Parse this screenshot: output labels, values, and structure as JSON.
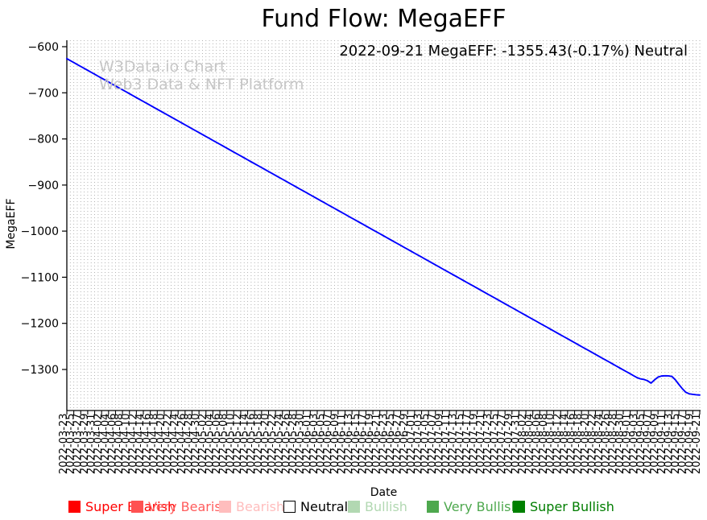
{
  "title": "Fund Flow: MegaEFF",
  "annotation": "2022-09-21 MegaEFF: -1355.43(-0.17%) Neutral",
  "watermark": {
    "line1": "W3Data.io Chart",
    "line2": "Web3 Data & NFT Platform"
  },
  "axes": {
    "y_label": "MegaEFF",
    "x_label": "Date",
    "y_ticks": [
      -600,
      -700,
      -800,
      -900,
      -1000,
      -1100,
      -1200,
      -1300
    ],
    "x_tick_step": 2,
    "grid": "vertical-dotted"
  },
  "legend": [
    {
      "label": "Super Bearish",
      "color": "#ff0000",
      "text_color": "#ff0000",
      "x": 85,
      "border": "none"
    },
    {
      "label": "Very Bearish",
      "color": "#ff5252",
      "text_color": "#ff5c5c",
      "x": 163,
      "border": "none"
    },
    {
      "label": "Bearish",
      "color": "#ffbdbd",
      "text_color": "#ffbdbd",
      "x": 272,
      "border": "none"
    },
    {
      "label": "Neutral",
      "color": "#ffffff",
      "text_color": "#000000",
      "x": 352,
      "border": "#000000"
    },
    {
      "label": "Bullish",
      "color": "#b2d8b2",
      "text_color": "#b2d8b2",
      "x": 432,
      "border": "none"
    },
    {
      "label": "Very Bullish",
      "color": "#4ea84e",
      "text_color": "#4ea84e",
      "x": 530,
      "border": "none"
    },
    {
      "label": "Super Bullish",
      "color": "#008000",
      "text_color": "#007d00",
      "x": 637,
      "border": "none"
    }
  ],
  "chart_data": {
    "type": "line",
    "title": "Fund Flow: MegaEFF",
    "xlabel": "Date",
    "ylabel": "MegaEFF",
    "line_color": "#0000ff",
    "grid_color": "#aaaaaa",
    "ylim": [
      -1389,
      -586
    ],
    "legend_position": "bottom",
    "last_point": {
      "date": "2022-09-21",
      "value": -1355.43,
      "change_pct": -0.17,
      "status": "Neutral"
    },
    "x": [
      "2022-03-23",
      "2022-03-24",
      "2022-03-25",
      "2022-03-26",
      "2022-03-27",
      "2022-03-28",
      "2022-03-29",
      "2022-03-30",
      "2022-03-31",
      "2022-04-01",
      "2022-04-02",
      "2022-04-03",
      "2022-04-04",
      "2022-04-05",
      "2022-04-06",
      "2022-04-07",
      "2022-04-08",
      "2022-04-09",
      "2022-04-10",
      "2022-04-11",
      "2022-04-12",
      "2022-04-13",
      "2022-04-14",
      "2022-04-15",
      "2022-04-16",
      "2022-04-17",
      "2022-04-18",
      "2022-04-19",
      "2022-04-20",
      "2022-04-21",
      "2022-04-22",
      "2022-04-23",
      "2022-04-24",
      "2022-04-25",
      "2022-04-26",
      "2022-04-27",
      "2022-04-28",
      "2022-04-29",
      "2022-04-30",
      "2022-05-01",
      "2022-05-02",
      "2022-05-03",
      "2022-05-04",
      "2022-05-05",
      "2022-05-06",
      "2022-05-07",
      "2022-05-08",
      "2022-05-09",
      "2022-05-10",
      "2022-05-11",
      "2022-05-12",
      "2022-05-13",
      "2022-05-14",
      "2022-05-15",
      "2022-05-16",
      "2022-05-17",
      "2022-05-18",
      "2022-05-19",
      "2022-05-20",
      "2022-05-21",
      "2022-05-22",
      "2022-05-23",
      "2022-05-24",
      "2022-05-25",
      "2022-05-26",
      "2022-05-27",
      "2022-05-28",
      "2022-05-29",
      "2022-05-30",
      "2022-05-31",
      "2022-06-01",
      "2022-06-02",
      "2022-06-03",
      "2022-06-04",
      "2022-06-05",
      "2022-06-06",
      "2022-06-07",
      "2022-06-08",
      "2022-06-09",
      "2022-06-10",
      "2022-06-11",
      "2022-06-12",
      "2022-06-13",
      "2022-06-14",
      "2022-06-15",
      "2022-06-16",
      "2022-06-17",
      "2022-06-18",
      "2022-06-19",
      "2022-06-20",
      "2022-06-21",
      "2022-06-22",
      "2022-06-23",
      "2022-06-24",
      "2022-06-25",
      "2022-06-26",
      "2022-06-27",
      "2022-06-28",
      "2022-06-29",
      "2022-06-30",
      "2022-07-01",
      "2022-07-02",
      "2022-07-03",
      "2022-07-04",
      "2022-07-05",
      "2022-07-06",
      "2022-07-07",
      "2022-07-08",
      "2022-07-09",
      "2022-07-10",
      "2022-07-11",
      "2022-07-12",
      "2022-07-13",
      "2022-07-14",
      "2022-07-15",
      "2022-07-16",
      "2022-07-17",
      "2022-07-18",
      "2022-07-19",
      "2022-07-20",
      "2022-07-21",
      "2022-07-22",
      "2022-07-23",
      "2022-07-24",
      "2022-07-25",
      "2022-07-26",
      "2022-07-27",
      "2022-07-28",
      "2022-07-29",
      "2022-07-30",
      "2022-07-31",
      "2022-08-01",
      "2022-08-02",
      "2022-08-03",
      "2022-08-04",
      "2022-08-05",
      "2022-08-06",
      "2022-08-07",
      "2022-08-08",
      "2022-08-09",
      "2022-08-10",
      "2022-08-11",
      "2022-08-12",
      "2022-08-13",
      "2022-08-14",
      "2022-08-15",
      "2022-08-16",
      "2022-08-17",
      "2022-08-18",
      "2022-08-19",
      "2022-08-20",
      "2022-08-21",
      "2022-08-22",
      "2022-08-23",
      "2022-08-24",
      "2022-08-25",
      "2022-08-26",
      "2022-08-27",
      "2022-08-28",
      "2022-08-29",
      "2022-08-30",
      "2022-08-31",
      "2022-09-01",
      "2022-09-02",
      "2022-09-03",
      "2022-09-04",
      "2022-09-05",
      "2022-09-06",
      "2022-09-07",
      "2022-09-08",
      "2022-09-09",
      "2022-09-10",
      "2022-09-11",
      "2022-09-12",
      "2022-09-13",
      "2022-09-14",
      "2022-09-15",
      "2022-09-16",
      "2022-09-17",
      "2022-09-18",
      "2022-09-19",
      "2022-09-20",
      "2022-09-21"
    ],
    "values": [
      -626.0,
      -630.2,
      -634.4,
      -638.7,
      -642.9,
      -647.1,
      -651.3,
      -655.5,
      -659.7,
      -664.0,
      -668.2,
      -672.4,
      -676.6,
      -680.8,
      -685.1,
      -689.3,
      -693.5,
      -697.7,
      -701.9,
      -706.1,
      -710.4,
      -714.6,
      -718.8,
      -723.0,
      -727.2,
      -731.5,
      -735.7,
      -739.9,
      -744.1,
      -748.3,
      -752.5,
      -756.8,
      -761.0,
      -765.2,
      -769.4,
      -773.6,
      -777.9,
      -782.1,
      -786.3,
      -790.5,
      -794.7,
      -798.9,
      -803.2,
      -807.4,
      -811.6,
      -815.8,
      -820.0,
      -824.3,
      -828.5,
      -832.7,
      -836.9,
      -841.1,
      -845.3,
      -849.6,
      -853.8,
      -858.0,
      -862.2,
      -866.4,
      -870.6,
      -874.9,
      -879.1,
      -883.3,
      -887.5,
      -891.7,
      -896.0,
      -900.2,
      -904.4,
      -908.6,
      -912.8,
      -917.0,
      -921.3,
      -925.5,
      -929.7,
      -933.9,
      -938.1,
      -942.4,
      -946.6,
      -950.8,
      -955.0,
      -959.2,
      -963.4,
      -967.7,
      -971.9,
      -976.1,
      -980.3,
      -984.5,
      -988.8,
      -993.0,
      -997.2,
      -1001.4,
      -1005.6,
      -1009.8,
      -1014.1,
      -1018.3,
      -1022.5,
      -1026.7,
      -1030.9,
      -1035.2,
      -1039.4,
      -1043.6,
      -1047.8,
      -1052.0,
      -1056.2,
      -1060.5,
      -1064.7,
      -1068.9,
      -1073.1,
      -1077.3,
      -1081.6,
      -1085.8,
      -1090.0,
      -1094.2,
      -1098.4,
      -1102.6,
      -1106.9,
      -1111.1,
      -1115.3,
      -1119.5,
      -1123.7,
      -1128.0,
      -1132.2,
      -1136.4,
      -1140.6,
      -1144.8,
      -1149.0,
      -1153.3,
      -1157.5,
      -1161.7,
      -1165.9,
      -1170.1,
      -1174.4,
      -1178.6,
      -1182.8,
      -1187.0,
      -1191.2,
      -1195.4,
      -1199.7,
      -1203.9,
      -1208.1,
      -1212.3,
      -1216.5,
      -1220.8,
      -1225.0,
      -1229.2,
      -1233.4,
      -1237.6,
      -1241.8,
      -1246.1,
      -1250.3,
      -1254.5,
      -1258.7,
      -1262.9,
      -1267.2,
      -1271.4,
      -1275.6,
      -1279.8,
      -1284.0,
      -1288.2,
      -1292.5,
      -1296.7,
      -1300.9,
      -1305.1,
      -1309.3,
      -1313.6,
      -1317.8,
      -1320.5,
      -1321.8,
      -1324.5,
      -1329.5,
      -1322.5,
      -1316.5,
      -1314.2,
      -1313.6,
      -1313.9,
      -1315.2,
      -1322.5,
      -1332.5,
      -1341.8,
      -1349.6,
      -1352.8,
      -1354.1,
      -1354.9,
      -1355.43
    ]
  }
}
